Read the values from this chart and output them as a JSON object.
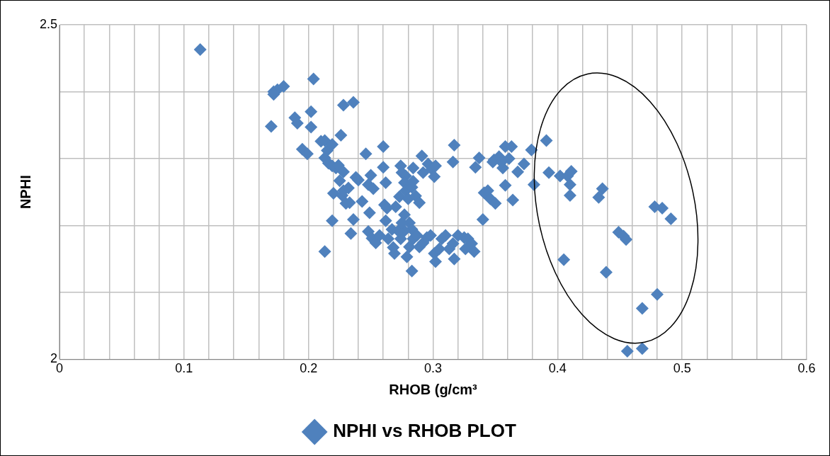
{
  "chart_data": {
    "type": "scatter",
    "xlabel": "RHOB (g/cm³",
    "ylabel": "NPHI",
    "legend": "bottom",
    "marker": "diamond",
    "grid": true,
    "xlim": [
      0,
      0.6
    ],
    "xticks": [
      0,
      {
        "value": 0.02,
        "label": null
      },
      {
        "value": 0.04,
        "label": null
      },
      {
        "value": 0.06,
        "label": null
      },
      {
        "value": 0.08,
        "label": null
      },
      0.1,
      {
        "value": 0.12,
        "label": null
      },
      {
        "value": 0.14,
        "label": null
      },
      {
        "value": 0.16,
        "label": null
      },
      {
        "value": 0.18,
        "label": null
      },
      0.2,
      {
        "value": 0.22,
        "label": null
      },
      {
        "value": 0.24,
        "label": null
      },
      {
        "value": 0.26,
        "label": null
      },
      {
        "value": 0.28,
        "label": null
      },
      0.3,
      {
        "value": 0.32,
        "label": null
      },
      {
        "value": 0.34,
        "label": null
      },
      {
        "value": 0.36,
        "label": null
      },
      {
        "value": 0.38,
        "label": null
      },
      0.4,
      {
        "value": 0.42,
        "label": null
      },
      {
        "value": 0.44,
        "label": null
      },
      {
        "value": 0.46,
        "label": null
      },
      {
        "value": 0.48,
        "label": null
      },
      0.5,
      {
        "value": 0.52,
        "label": null
      },
      {
        "value": 0.54,
        "label": null
      },
      {
        "value": 0.56,
        "label": null
      },
      {
        "value": 0.58,
        "label": null
      },
      0.6
    ],
    "ylim": [
      2,
      2.5
    ],
    "yticks": [
      2,
      {
        "value": 2.1,
        "label": null
      },
      {
        "value": 2.2,
        "label": null
      },
      {
        "value": 2.3,
        "label": null
      },
      {
        "value": 2.4,
        "label": null
      },
      2.5
    ],
    "x": [
      0.113,
      0.172,
      0.175,
      0.18,
      0.172,
      0.204,
      0.17,
      0.189,
      0.191,
      0.202,
      0.202,
      0.195,
      0.199,
      0.21,
      0.213,
      0.215,
      0.219,
      0.213,
      0.216,
      0.219,
      0.222,
      0.226,
      0.228,
      0.236,
      0.224,
      0.228,
      0.225,
      0.22,
      0.219,
      0.213,
      0.227,
      0.228,
      0.232,
      0.233,
      0.23,
      0.234,
      0.236,
      0.238,
      0.24,
      0.243,
      0.246,
      0.248,
      0.25,
      0.252,
      0.249,
      0.248,
      0.251,
      0.254,
      0.257,
      0.26,
      0.26,
      0.262,
      0.261,
      0.263,
      0.262,
      0.267,
      0.264,
      0.269,
      0.268,
      0.27,
      0.273,
      0.274,
      0.275,
      0.278,
      0.277,
      0.278,
      0.28,
      0.283,
      0.284,
      0.284,
      0.286,
      0.289,
      0.291,
      0.292,
      0.296,
      0.299,
      0.301,
      0.302,
      0.281,
      0.283,
      0.284,
      0.281,
      0.279,
      0.277,
      0.274,
      0.272,
      0.277,
      0.275,
      0.283,
      0.287,
      0.289,
      0.292,
      0.295,
      0.298,
      0.301,
      0.302,
      0.305,
      0.307,
      0.31,
      0.313,
      0.316,
      0.317,
      0.32,
      0.325,
      0.326,
      0.328,
      0.333,
      0.331,
      0.317,
      0.316,
      0.334,
      0.337,
      0.34,
      0.341,
      0.344,
      0.346,
      0.348,
      0.349,
      0.35,
      0.353,
      0.356,
      0.358,
      0.361,
      0.363,
      0.358,
      0.364,
      0.355,
      0.368,
      0.373,
      0.379,
      0.381,
      0.391,
      0.393,
      0.402,
      0.405,
      0.408,
      0.41,
      0.41,
      0.411,
      0.433,
      0.436,
      0.439,
      0.449,
      0.453,
      0.455,
      0.468,
      0.478,
      0.48,
      0.484,
      0.491,
      0.456,
      0.468
    ],
    "series": [
      {
        "name": "NPHI vs RHOB PLOT",
        "color": "#4f81bd",
        "values": [
          2.463,
          2.4,
          2.403,
          2.408,
          2.396,
          2.419,
          2.348,
          2.361,
          2.353,
          2.37,
          2.347,
          2.314,
          2.307,
          2.326,
          2.327,
          2.312,
          2.321,
          2.301,
          2.293,
          2.289,
          2.286,
          2.335,
          2.38,
          2.384,
          2.29,
          2.28,
          2.267,
          2.248,
          2.207,
          2.161,
          2.245,
          2.252,
          2.256,
          2.234,
          2.233,
          2.188,
          2.209,
          2.272,
          2.268,
          2.236,
          2.307,
          2.261,
          2.275,
          2.255,
          2.219,
          2.191,
          2.181,
          2.174,
          2.185,
          2.318,
          2.287,
          2.264,
          2.231,
          2.226,
          2.207,
          2.194,
          2.18,
          2.158,
          2.167,
          2.228,
          2.243,
          2.289,
          2.279,
          2.274,
          2.264,
          2.252,
          2.24,
          2.257,
          2.286,
          2.266,
          2.244,
          2.234,
          2.304,
          2.279,
          2.292,
          2.284,
          2.273,
          2.289,
          2.204,
          2.194,
          2.18,
          2.168,
          2.153,
          2.192,
          2.18,
          2.192,
          2.216,
          2.204,
          2.132,
          2.185,
          2.168,
          2.174,
          2.182,
          2.185,
          2.158,
          2.146,
          2.165,
          2.18,
          2.185,
          2.165,
          2.173,
          2.15,
          2.185,
          2.182,
          2.165,
          2.18,
          2.161,
          2.173,
          2.32,
          2.295,
          2.287,
          2.301,
          2.209,
          2.249,
          2.252,
          2.24,
          2.295,
          2.298,
          2.233,
          2.303,
          2.286,
          2.318,
          2.3,
          2.318,
          2.26,
          2.238,
          2.295,
          2.28,
          2.292,
          2.313,
          2.261,
          2.327,
          2.279,
          2.274,
          2.149,
          2.274,
          2.261,
          2.245,
          2.281,
          2.242,
          2.255,
          2.13,
          2.19,
          2.184,
          2.179,
          2.076,
          2.228,
          2.097,
          2.226,
          2.21,
          2.012,
          2.016
        ]
      }
    ]
  }
}
